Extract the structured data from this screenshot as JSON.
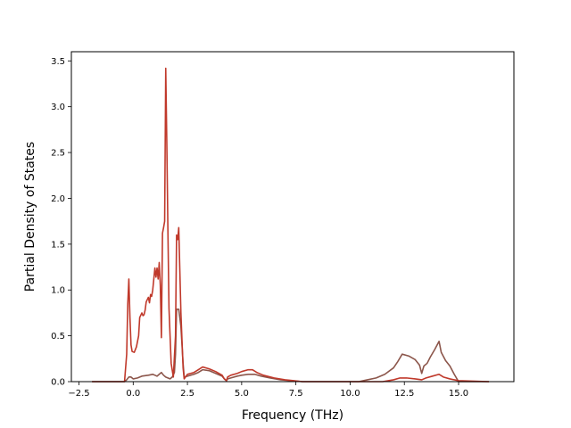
{
  "chart_data": {
    "type": "line",
    "title": "",
    "xlabel": "Frequency (THz)",
    "ylabel": "Partial Density of States",
    "xlim": [
      -2.85,
      17.55
    ],
    "ylim": [
      0,
      3.6
    ],
    "x_ticks": [
      -2.5,
      0.0,
      2.5,
      5.0,
      7.5,
      10.0,
      12.5,
      15.0
    ],
    "x_tick_labels": [
      "−2.5",
      "0.0",
      "2.5",
      "5.0",
      "7.5",
      "10.0",
      "12.5",
      "15.0"
    ],
    "y_ticks": [
      0.0,
      0.5,
      1.0,
      1.5,
      2.0,
      2.5,
      3.0,
      3.5
    ],
    "y_tick_labels": [
      "0.0",
      "0.5",
      "1.0",
      "1.5",
      "2.0",
      "2.5",
      "3.0",
      "3.5"
    ],
    "grid": false,
    "series": [
      {
        "color": "#8c564b",
        "points": [
          [
            -1.9,
            0
          ],
          [
            -0.4,
            0
          ],
          [
            -0.3,
            0.02
          ],
          [
            -0.2,
            0.05
          ],
          [
            -0.1,
            0.05
          ],
          [
            0.0,
            0.03
          ],
          [
            0.2,
            0.04
          ],
          [
            0.4,
            0.06
          ],
          [
            0.7,
            0.07
          ],
          [
            0.9,
            0.08
          ],
          [
            1.0,
            0.07
          ],
          [
            1.1,
            0.06
          ],
          [
            1.2,
            0.08
          ],
          [
            1.3,
            0.1
          ],
          [
            1.4,
            0.07
          ],
          [
            1.5,
            0.05
          ],
          [
            1.6,
            0.04
          ],
          [
            1.7,
            0.03
          ],
          [
            1.8,
            0.05
          ],
          [
            1.9,
            0.1
          ],
          [
            1.95,
            0.3
          ],
          [
            2.0,
            0.79
          ],
          [
            2.1,
            0.79
          ],
          [
            2.2,
            0.6
          ],
          [
            2.3,
            0.2
          ],
          [
            2.35,
            0.05
          ],
          [
            2.5,
            0.06
          ],
          [
            2.8,
            0.08
          ],
          [
            3.0,
            0.1
          ],
          [
            3.2,
            0.13
          ],
          [
            3.5,
            0.12
          ],
          [
            3.8,
            0.09
          ],
          [
            4.1,
            0.06
          ],
          [
            4.2,
            0.03
          ],
          [
            4.3,
            0.01
          ],
          [
            4.35,
            0.03
          ],
          [
            4.5,
            0.04
          ],
          [
            4.8,
            0.06
          ],
          [
            5.0,
            0.07
          ],
          [
            5.3,
            0.08
          ],
          [
            5.6,
            0.08
          ],
          [
            5.9,
            0.06
          ],
          [
            6.3,
            0.04
          ],
          [
            6.8,
            0.02
          ],
          [
            7.3,
            0.01
          ],
          [
            7.8,
            0
          ],
          [
            10.4,
            0
          ],
          [
            10.8,
            0.02
          ],
          [
            11.2,
            0.04
          ],
          [
            11.6,
            0.08
          ],
          [
            12.0,
            0.15
          ],
          [
            12.2,
            0.22
          ],
          [
            12.4,
            0.3
          ],
          [
            12.7,
            0.28
          ],
          [
            13.0,
            0.24
          ],
          [
            13.2,
            0.18
          ],
          [
            13.3,
            0.09
          ],
          [
            13.4,
            0.17
          ],
          [
            13.55,
            0.2
          ],
          [
            13.7,
            0.27
          ],
          [
            13.9,
            0.35
          ],
          [
            14.1,
            0.44
          ],
          [
            14.2,
            0.32
          ],
          [
            14.4,
            0.23
          ],
          [
            14.6,
            0.17
          ],
          [
            14.8,
            0.08
          ],
          [
            15.0,
            0
          ],
          [
            16.4,
            0
          ]
        ]
      },
      {
        "color": "#c0392b",
        "points": [
          [
            -1.9,
            0
          ],
          [
            -0.4,
            0
          ],
          [
            -0.3,
            0.3
          ],
          [
            -0.25,
            0.85
          ],
          [
            -0.2,
            1.12
          ],
          [
            -0.15,
            0.7
          ],
          [
            -0.1,
            0.4
          ],
          [
            -0.05,
            0.33
          ],
          [
            0.05,
            0.32
          ],
          [
            0.15,
            0.38
          ],
          [
            0.25,
            0.5
          ],
          [
            0.3,
            0.7
          ],
          [
            0.4,
            0.75
          ],
          [
            0.45,
            0.72
          ],
          [
            0.5,
            0.73
          ],
          [
            0.55,
            0.78
          ],
          [
            0.6,
            0.87
          ],
          [
            0.7,
            0.92
          ],
          [
            0.75,
            0.86
          ],
          [
            0.8,
            0.95
          ],
          [
            0.85,
            0.93
          ],
          [
            0.9,
            1.0
          ],
          [
            1.0,
            1.24
          ],
          [
            1.05,
            1.14
          ],
          [
            1.1,
            1.24
          ],
          [
            1.15,
            1.12
          ],
          [
            1.2,
            1.3
          ],
          [
            1.25,
            1.05
          ],
          [
            1.3,
            0.48
          ],
          [
            1.35,
            1.62
          ],
          [
            1.4,
            1.68
          ],
          [
            1.45,
            1.75
          ],
          [
            1.5,
            3.42
          ],
          [
            1.55,
            2.6
          ],
          [
            1.6,
            1.65
          ],
          [
            1.65,
            0.8
          ],
          [
            1.75,
            0.2
          ],
          [
            1.85,
            0.05
          ],
          [
            1.95,
            0.5
          ],
          [
            2.0,
            1.6
          ],
          [
            2.05,
            1.55
          ],
          [
            2.1,
            1.68
          ],
          [
            2.2,
            0.75
          ],
          [
            2.3,
            0.15
          ],
          [
            2.35,
            0.03
          ],
          [
            2.5,
            0.08
          ],
          [
            2.8,
            0.1
          ],
          [
            3.0,
            0.13
          ],
          [
            3.2,
            0.16
          ],
          [
            3.5,
            0.14
          ],
          [
            3.8,
            0.11
          ],
          [
            4.1,
            0.07
          ],
          [
            4.2,
            0.03
          ],
          [
            4.3,
            0.01
          ],
          [
            4.35,
            0.05
          ],
          [
            4.5,
            0.07
          ],
          [
            4.8,
            0.09
          ],
          [
            5.0,
            0.11
          ],
          [
            5.3,
            0.13
          ],
          [
            5.5,
            0.13
          ],
          [
            5.7,
            0.1
          ],
          [
            6.0,
            0.07
          ],
          [
            6.5,
            0.04
          ],
          [
            7.0,
            0.02
          ],
          [
            7.4,
            0.01
          ],
          [
            7.8,
            0
          ],
          [
            11.5,
            0
          ],
          [
            12.0,
            0.02
          ],
          [
            12.3,
            0.04
          ],
          [
            12.6,
            0.04
          ],
          [
            13.0,
            0.03
          ],
          [
            13.3,
            0.02
          ],
          [
            13.5,
            0.04
          ],
          [
            13.8,
            0.06
          ],
          [
            14.1,
            0.08
          ],
          [
            14.3,
            0.05
          ],
          [
            14.6,
            0.03
          ],
          [
            15.0,
            0.01
          ],
          [
            16.4,
            0
          ]
        ]
      }
    ]
  }
}
